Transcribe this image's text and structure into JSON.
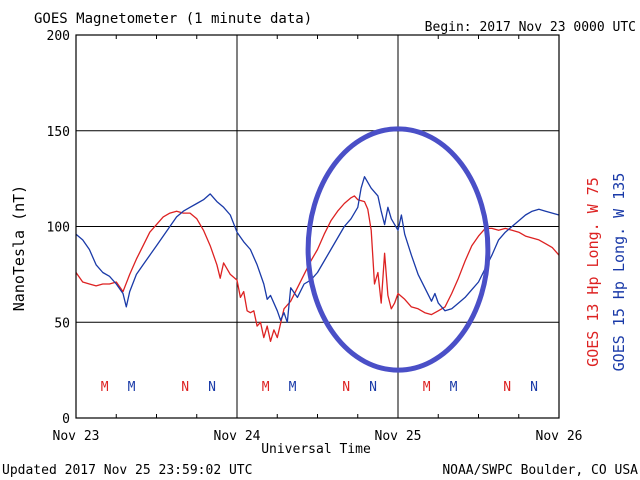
{
  "header": {
    "title": "GOES Magnetometer (1 minute data)",
    "begin": "Begin:  2017 Nov 23 0000 UTC"
  },
  "footer": {
    "updated": "Updated 2017 Nov 25 23:59:02 UTC",
    "source": "NOAA/SWPC Boulder, CO USA"
  },
  "chart_data": {
    "type": "line",
    "title": "GOES Magnetometer (1 minute data)",
    "xlabel": "Universal Time",
    "ylabel": "NanoTesla (nT)",
    "xlim": [
      0,
      72
    ],
    "ylim": [
      0,
      200
    ],
    "x_unit": "hours since 2017 Nov 23 0000 UTC",
    "y_ticks": [
      0,
      50,
      100,
      150,
      200
    ],
    "x_ticks": [
      {
        "x": 0,
        "label": "Nov 23"
      },
      {
        "x": 24,
        "label": "Nov 24"
      },
      {
        "x": 48,
        "label": "Nov 25"
      },
      {
        "x": 72,
        "label": "Nov 26"
      }
    ],
    "grid": true,
    "series": [
      {
        "name": "GOES 13 Hp  Long. W 75",
        "color": "#dd2222",
        "points": [
          [
            0,
            76
          ],
          [
            1,
            71
          ],
          [
            2,
            70
          ],
          [
            3,
            69
          ],
          [
            4,
            70
          ],
          [
            5,
            70
          ],
          [
            6,
            71
          ],
          [
            7,
            66
          ],
          [
            8,
            75
          ],
          [
            9,
            83
          ],
          [
            10,
            90
          ],
          [
            11,
            97
          ],
          [
            12,
            101
          ],
          [
            13,
            105
          ],
          [
            14,
            107
          ],
          [
            15,
            108
          ],
          [
            16,
            107
          ],
          [
            17,
            107
          ],
          [
            18,
            104
          ],
          [
            19,
            98
          ],
          [
            20,
            90
          ],
          [
            21,
            80
          ],
          [
            21.5,
            73
          ],
          [
            22,
            81
          ],
          [
            23,
            75
          ],
          [
            24,
            72
          ],
          [
            24.5,
            63
          ],
          [
            25,
            66
          ],
          [
            25.5,
            56
          ],
          [
            26,
            55
          ],
          [
            26.5,
            56
          ],
          [
            27,
            48
          ],
          [
            27.5,
            50
          ],
          [
            28,
            42
          ],
          [
            28.5,
            48
          ],
          [
            29,
            40
          ],
          [
            29.5,
            46
          ],
          [
            30,
            42
          ],
          [
            31,
            57
          ],
          [
            32,
            61
          ],
          [
            33,
            68
          ],
          [
            34,
            75
          ],
          [
            35,
            82
          ],
          [
            36,
            88
          ],
          [
            37,
            96
          ],
          [
            38,
            103
          ],
          [
            39,
            108
          ],
          [
            40,
            112
          ],
          [
            41,
            115
          ],
          [
            41.5,
            116
          ],
          [
            42,
            114
          ],
          [
            43,
            113
          ],
          [
            43.5,
            109
          ],
          [
            44,
            98
          ],
          [
            44.5,
            70
          ],
          [
            45,
            76
          ],
          [
            45.5,
            60
          ],
          [
            46,
            86
          ],
          [
            46.5,
            64
          ],
          [
            47,
            57
          ],
          [
            47.5,
            60
          ],
          [
            48,
            65
          ],
          [
            49,
            62
          ],
          [
            50,
            58
          ],
          [
            51,
            57
          ],
          [
            52,
            55
          ],
          [
            53,
            54
          ],
          [
            54,
            56
          ],
          [
            55,
            58
          ],
          [
            56,
            65
          ],
          [
            57,
            73
          ],
          [
            58,
            82
          ],
          [
            59,
            90
          ],
          [
            60,
            95
          ],
          [
            61,
            99
          ],
          [
            62,
            99
          ],
          [
            63,
            98
          ],
          [
            64,
            99
          ],
          [
            65,
            98
          ],
          [
            66,
            97
          ],
          [
            67,
            95
          ],
          [
            68,
            94
          ],
          [
            69,
            93
          ],
          [
            70,
            91
          ],
          [
            71,
            89
          ],
          [
            72,
            85
          ]
        ]
      },
      {
        "name": "GOES 15 Hp  Long. W 135",
        "color": "#1a3aa8",
        "points": [
          [
            0,
            96
          ],
          [
            1,
            93
          ],
          [
            2,
            88
          ],
          [
            3,
            80
          ],
          [
            4,
            76
          ],
          [
            5,
            74
          ],
          [
            6,
            70
          ],
          [
            7,
            65
          ],
          [
            7.5,
            58
          ],
          [
            8,
            66
          ],
          [
            9,
            75
          ],
          [
            10,
            80
          ],
          [
            11,
            85
          ],
          [
            12,
            90
          ],
          [
            13,
            95
          ],
          [
            14,
            100
          ],
          [
            15,
            105
          ],
          [
            16,
            108
          ],
          [
            17,
            110
          ],
          [
            18,
            112
          ],
          [
            19,
            114
          ],
          [
            20,
            117
          ],
          [
            21,
            113
          ],
          [
            22,
            110
          ],
          [
            23,
            106
          ],
          [
            24,
            97
          ],
          [
            25,
            92
          ],
          [
            26,
            88
          ],
          [
            27,
            80
          ],
          [
            28,
            70
          ],
          [
            28.5,
            62
          ],
          [
            29,
            64
          ],
          [
            30,
            56
          ],
          [
            30.5,
            51
          ],
          [
            31,
            55
          ],
          [
            31.5,
            50
          ],
          [
            32,
            68
          ],
          [
            33,
            63
          ],
          [
            34,
            70
          ],
          [
            35,
            72
          ],
          [
            36,
            76
          ],
          [
            37,
            82
          ],
          [
            38,
            88
          ],
          [
            39,
            94
          ],
          [
            40,
            100
          ],
          [
            41,
            104
          ],
          [
            42,
            110
          ],
          [
            42.5,
            120
          ],
          [
            43,
            126
          ],
          [
            44,
            120
          ],
          [
            45,
            116
          ],
          [
            45.5,
            108
          ],
          [
            46,
            101
          ],
          [
            46.5,
            110
          ],
          [
            47,
            104
          ],
          [
            48,
            98
          ],
          [
            48.5,
            106
          ],
          [
            49,
            96
          ],
          [
            50,
            85
          ],
          [
            51,
            75
          ],
          [
            52,
            68
          ],
          [
            53,
            61
          ],
          [
            53.5,
            65
          ],
          [
            54,
            60
          ],
          [
            55,
            56
          ],
          [
            56,
            57
          ],
          [
            57,
            60
          ],
          [
            58,
            63
          ],
          [
            59,
            67
          ],
          [
            60,
            71
          ],
          [
            61,
            78
          ],
          [
            62,
            85
          ],
          [
            63,
            93
          ],
          [
            64,
            97
          ],
          [
            65,
            100
          ],
          [
            66,
            103
          ],
          [
            67,
            106
          ],
          [
            68,
            108
          ],
          [
            69,
            109
          ],
          [
            70,
            108
          ],
          [
            71,
            107
          ],
          [
            72,
            106
          ]
        ]
      }
    ],
    "mn_markers": [
      {
        "x": 8,
        "label": "M",
        "color": "#dd2222"
      },
      {
        "x": 12,
        "label": "M",
        "color": "#1a3aa8"
      },
      {
        "x": 20,
        "label": "N",
        "color": "#dd2222"
      },
      {
        "x": 24,
        "label": "N",
        "color": "#1a3aa8"
      },
      {
        "x": 32,
        "label": "M",
        "color": "#dd2222"
      },
      {
        "x": 36,
        "label": "M",
        "color": "#1a3aa8"
      },
      {
        "x": 44,
        "label": "N",
        "color": "#dd2222"
      },
      {
        "x": 48,
        "label": "N",
        "color": "#1a3aa8"
      },
      {
        "x": 56,
        "label": "M",
        "color": "#dd2222"
      },
      {
        "x": 60,
        "label": "M",
        "color": "#1a3aa8"
      },
      {
        "x": 68,
        "label": "N",
        "color": "#dd2222"
      },
      {
        "x": 72,
        "label": "N",
        "color": "#1a3aa8"
      }
    ],
    "annotation": {
      "shape": "ellipse",
      "color": "#4a4fc7",
      "cx": 48,
      "cy": 88,
      "rx": 13.4,
      "ry": 63
    }
  }
}
